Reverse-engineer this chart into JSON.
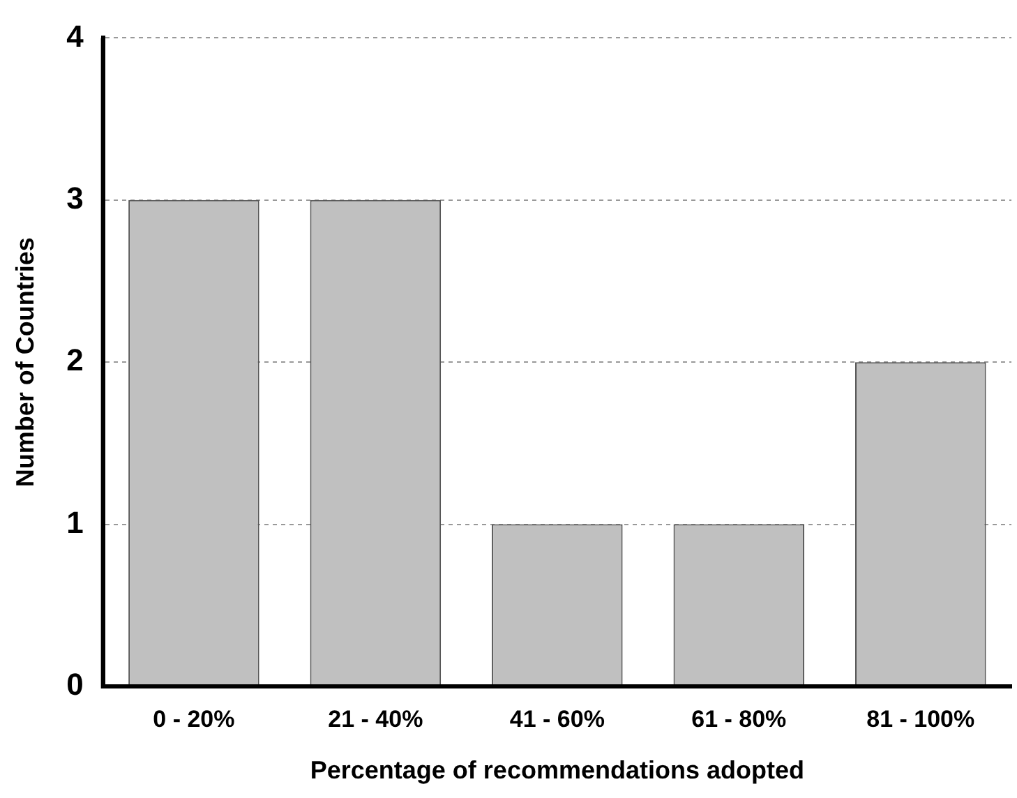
{
  "chart_data": {
    "type": "bar",
    "xlabel": "Percentage of recommendations adopted",
    "ylabel": "Number of Countries",
    "categories": [
      "0 - 20%",
      "21 - 40%",
      "41 - 60%",
      "61 - 80%",
      "81 - 100%"
    ],
    "values": [
      3,
      3,
      1,
      1,
      2
    ],
    "color": "#c0c0c0",
    "ylim": [
      0,
      4
    ],
    "yticks": [
      0,
      1,
      2,
      3,
      4
    ],
    "grid": "y",
    "legend": false
  }
}
